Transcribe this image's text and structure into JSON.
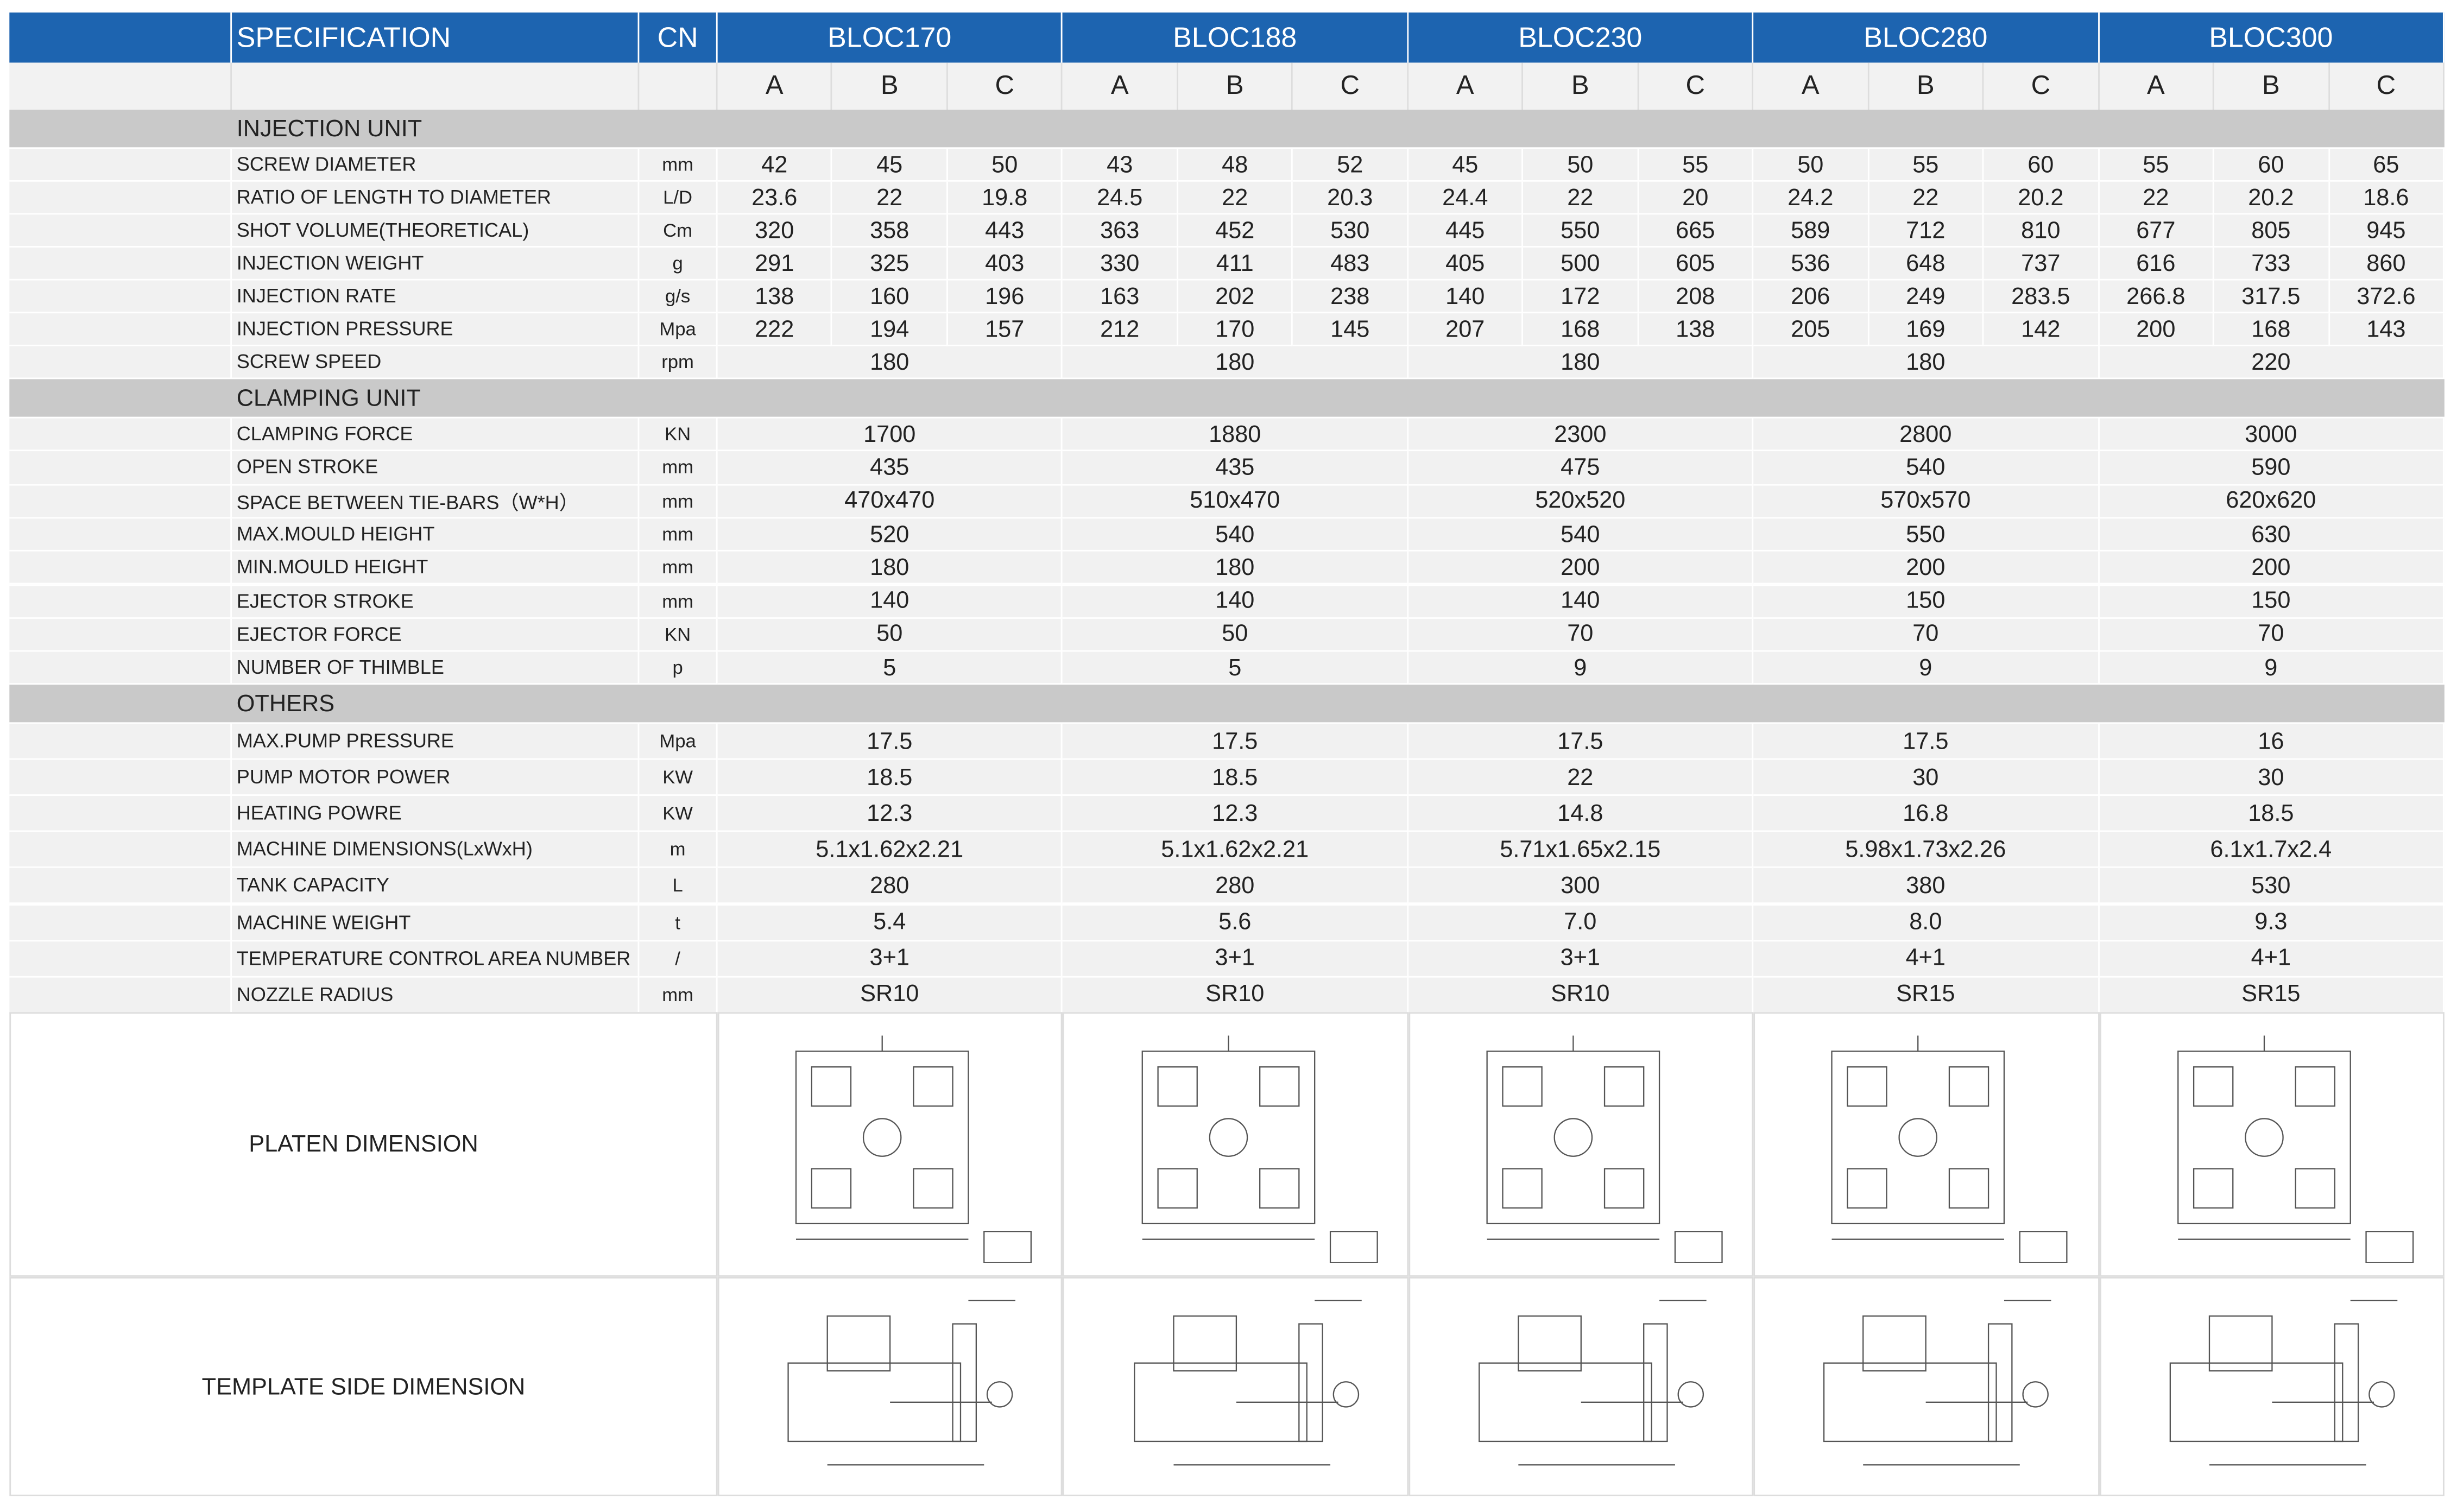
{
  "header": {
    "spec": "SPECIFICATION",
    "cn": "CN",
    "models": [
      "BLOC170",
      "BLOC188",
      "BLOC230",
      "BLOC280",
      "BLOC300"
    ],
    "variants": [
      "A",
      "B",
      "C"
    ]
  },
  "sections": [
    {
      "title": "INJECTION UNIT",
      "rows": [
        {
          "label": "SCREW DIAMETER",
          "unit": "mm",
          "values": [
            "42",
            "45",
            "50",
            "43",
            "48",
            "52",
            "45",
            "50",
            "55",
            "50",
            "55",
            "60",
            "55",
            "60",
            "65"
          ]
        },
        {
          "label": "RATIO OF LENGTH TO DIAMETER",
          "unit": "L/D",
          "values": [
            "23.6",
            "22",
            "19.8",
            "24.5",
            "22",
            "20.3",
            "24.4",
            "22",
            "20",
            "24.2",
            "22",
            "20.2",
            "22",
            "20.2",
            "18.6"
          ]
        },
        {
          "label": "SHOT VOLUME(THEORETICAL)",
          "unit": "Cm",
          "values": [
            "320",
            "358",
            "443",
            "363",
            "452",
            "530",
            "445",
            "550",
            "665",
            "589",
            "712",
            "810",
            "677",
            "805",
            "945"
          ]
        },
        {
          "label": "INJECTION WEIGHT",
          "unit": "g",
          "values": [
            "291",
            "325",
            "403",
            "330",
            "411",
            "483",
            "405",
            "500",
            "605",
            "536",
            "648",
            "737",
            "616",
            "733",
            "860"
          ]
        },
        {
          "label": "INJECTION RATE",
          "unit": "g/s",
          "values": [
            "138",
            "160",
            "196",
            "163",
            "202",
            "238",
            "140",
            "172",
            "208",
            "206",
            "249",
            "283.5",
            "266.8",
            "317.5",
            "372.6"
          ]
        },
        {
          "label": "INJECTION PRESSURE",
          "unit": "Mpa",
          "values": [
            "222",
            "194",
            "157",
            "212",
            "170",
            "145",
            "207",
            "168",
            "138",
            "205",
            "169",
            "142",
            "200",
            "168",
            "143"
          ]
        },
        {
          "label": "SCREW SPEED",
          "unit": "rpm",
          "values": [
            "180",
            "180",
            "180",
            "180",
            "220"
          ]
        }
      ]
    },
    {
      "title": "CLAMPING UNIT",
      "rows": [
        {
          "label": "CLAMPING FORCE",
          "unit": "KN",
          "values": [
            "1700",
            "1880",
            "2300",
            "2800",
            "3000"
          ]
        },
        {
          "label": "OPEN STROKE",
          "unit": "mm",
          "values": [
            "435",
            "435",
            "475",
            "540",
            "590"
          ]
        },
        {
          "label": "SPACE BETWEEN TIE-BARS（W*H）",
          "unit": "mm",
          "values": [
            "470x470",
            "510x470",
            "520x520",
            "570x570",
            "620x620"
          ]
        },
        {
          "label": "MAX.MOULD HEIGHT",
          "unit": "mm",
          "values": [
            "520",
            "540",
            "540",
            "550",
            "630"
          ]
        },
        {
          "label": "MIN.MOULD HEIGHT",
          "unit": "mm",
          "values": [
            "180",
            "180",
            "200",
            "200",
            "200"
          ]
        },
        {
          "label": "EJECTOR STROKE",
          "unit": "mm",
          "values": [
            "140",
            "140",
            "140",
            "150",
            "150"
          ]
        },
        {
          "label": "EJECTOR FORCE",
          "unit": "KN",
          "values": [
            "50",
            "50",
            "70",
            "70",
            "70"
          ]
        },
        {
          "label": "NUMBER OF THIMBLE",
          "unit": "p",
          "values": [
            "5",
            "5",
            "9",
            "9",
            "9"
          ]
        }
      ]
    },
    {
      "title": "OTHERS",
      "rows": [
        {
          "label": "MAX.PUMP PRESSURE",
          "unit": "Mpa",
          "values": [
            "17.5",
            "17.5",
            "17.5",
            "17.5",
            "16"
          ]
        },
        {
          "label": "PUMP MOTOR POWER",
          "unit": "KW",
          "values": [
            "18.5",
            "18.5",
            "22",
            "30",
            "30"
          ]
        },
        {
          "label": "HEATING POWRE",
          "unit": "KW",
          "values": [
            "12.3",
            "12.3",
            "14.8",
            "16.8",
            "18.5"
          ]
        },
        {
          "label": "MACHINE DIMENSIONS(LxWxH)",
          "unit": "m",
          "values": [
            "5.1x1.62x2.21",
            "5.1x1.62x2.21",
            "5.71x1.65x2.15",
            "5.98x1.73x2.26",
            "6.1x1.7x2.4"
          ]
        },
        {
          "label": "TANK CAPACITY",
          "unit": "L",
          "values": [
            "280",
            "280",
            "300",
            "380",
            "530"
          ]
        },
        {
          "label": "MACHINE WEIGHT",
          "unit": "t",
          "values": [
            "5.4",
            "5.6",
            "7.0",
            "8.0",
            "9.3"
          ]
        },
        {
          "label": "TEMPERATURE CONTROL AREA NUMBER",
          "unit": "/",
          "values": [
            "3+1",
            "3+1",
            "3+1",
            "4+1",
            "4+1"
          ]
        },
        {
          "label": "NOZZLE RADIUS",
          "unit": "mm",
          "values": [
            "SR10",
            "SR10",
            "SR10",
            "SR15",
            "SR15"
          ]
        }
      ]
    }
  ],
  "drawings": [
    {
      "label": "PLATEN DIMENSION"
    },
    {
      "label": "TEMPLATE SIDE DIMENSION"
    }
  ]
}
